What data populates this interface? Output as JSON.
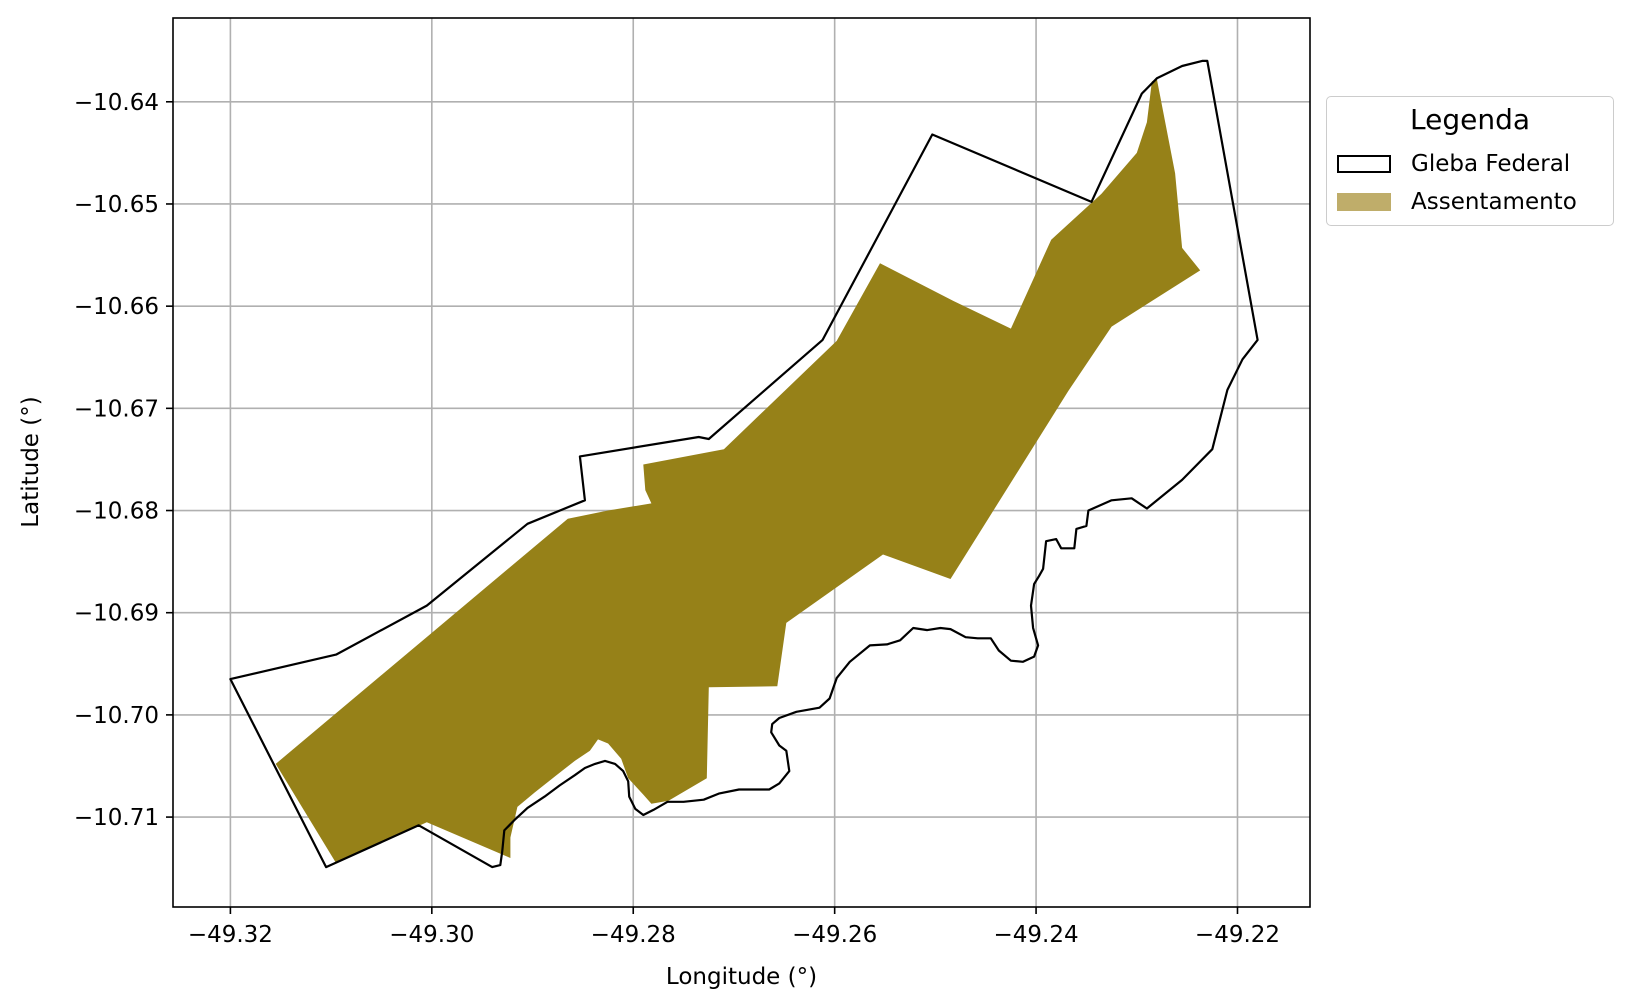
{
  "chart_data": {
    "type": "map",
    "xlabel": "Longitude (°)",
    "ylabel": "Latitude (°)",
    "xlim": [
      -49.3257,
      -49.2128
    ],
    "ylim": [
      -10.7188,
      -10.6318
    ],
    "x_ticks": [
      -49.32,
      -49.3,
      -49.28,
      -49.26,
      -49.24,
      -49.22
    ],
    "x_tick_labels": [
      "−49.32",
      "−49.30",
      "−49.28",
      "−49.26",
      "−49.24",
      "−49.22"
    ],
    "y_ticks": [
      -10.64,
      -10.65,
      -10.66,
      -10.67,
      -10.68,
      -10.69,
      -10.7,
      -10.71
    ],
    "y_tick_labels": [
      "−10.64",
      "−10.65",
      "−10.66",
      "−10.67",
      "−10.68",
      "−10.69",
      "−10.70",
      "−10.71"
    ],
    "grid": true,
    "legend": {
      "title": "Legenda",
      "placement": "outside-upper-right",
      "entries": [
        {
          "label": "Gleba Federal",
          "style": "outline",
          "edge_color": "#000000",
          "fill_color": "#ffffff"
        },
        {
          "label": "Assentamento",
          "style": "fill",
          "fill_color": "#bfad6a"
        }
      ]
    },
    "series": [
      {
        "name": "Gleba Federal",
        "style": "outline",
        "edge_color": "#000000",
        "coordinates": [
          [
            -49.32,
            -10.6965
          ],
          [
            -49.3095,
            -10.6941
          ],
          [
            -49.3005,
            -10.6893
          ],
          [
            -49.2905,
            -10.6813
          ],
          [
            -49.2848,
            -10.679
          ],
          [
            -49.2853,
            -10.6747
          ],
          [
            -49.2735,
            -10.6728
          ],
          [
            -49.2725,
            -10.673
          ],
          [
            -49.2612,
            -10.6633
          ],
          [
            -49.2503,
            -10.6432
          ],
          [
            -49.2345,
            -10.6498
          ],
          [
            -49.2295,
            -10.6392
          ],
          [
            -49.228,
            -10.6377
          ],
          [
            -49.2255,
            -10.6365
          ],
          [
            -49.2235,
            -10.636
          ],
          [
            -49.223,
            -10.636
          ],
          [
            -49.218,
            -10.6633
          ],
          [
            -49.2195,
            -10.6652
          ],
          [
            -49.221,
            -10.6682
          ],
          [
            -49.2225,
            -10.674
          ],
          [
            -49.2255,
            -10.677
          ],
          [
            -49.229,
            -10.6798
          ],
          [
            -49.2305,
            -10.6788
          ],
          [
            -49.2325,
            -10.679
          ],
          [
            -49.2348,
            -10.68
          ],
          [
            -49.235,
            -10.6815
          ],
          [
            -49.236,
            -10.6818
          ],
          [
            -49.2362,
            -10.6837
          ],
          [
            -49.2375,
            -10.6837
          ],
          [
            -49.238,
            -10.6828
          ],
          [
            -49.239,
            -10.683
          ],
          [
            -49.2393,
            -10.6857
          ],
          [
            -49.2397,
            -10.6864
          ],
          [
            -49.2402,
            -10.6872
          ],
          [
            -49.2405,
            -10.6893
          ],
          [
            -49.2403,
            -10.6915
          ],
          [
            -49.2398,
            -10.6932
          ],
          [
            -49.2402,
            -10.6943
          ],
          [
            -49.2413,
            -10.6948
          ],
          [
            -49.2425,
            -10.6947
          ],
          [
            -49.2437,
            -10.6937
          ],
          [
            -49.2445,
            -10.6925
          ],
          [
            -49.2458,
            -10.6925
          ],
          [
            -49.247,
            -10.6924
          ],
          [
            -49.2485,
            -10.6916
          ],
          [
            -49.2495,
            -10.6915
          ],
          [
            -49.2508,
            -10.6917
          ],
          [
            -49.2522,
            -10.6915
          ],
          [
            -49.2535,
            -10.6927
          ],
          [
            -49.2548,
            -10.6931
          ],
          [
            -49.2565,
            -10.6932
          ],
          [
            -49.2585,
            -10.6948
          ],
          [
            -49.2598,
            -10.6964
          ],
          [
            -49.2605,
            -10.6984
          ],
          [
            -49.2615,
            -10.6993
          ],
          [
            -49.2638,
            -10.6997
          ],
          [
            -49.2655,
            -10.7003
          ],
          [
            -49.2662,
            -10.7009
          ],
          [
            -49.2663,
            -10.7017
          ],
          [
            -49.2655,
            -10.703
          ],
          [
            -49.2648,
            -10.7035
          ],
          [
            -49.2645,
            -10.7055
          ],
          [
            -49.2655,
            -10.7067
          ],
          [
            -49.2665,
            -10.7073
          ],
          [
            -49.2695,
            -10.7073
          ],
          [
            -49.2715,
            -10.7077
          ],
          [
            -49.273,
            -10.7083
          ],
          [
            -49.275,
            -10.7085
          ],
          [
            -49.2766,
            -10.7085
          ],
          [
            -49.278,
            -10.7093
          ],
          [
            -49.279,
            -10.7098
          ],
          [
            -49.2798,
            -10.7092
          ],
          [
            -49.2804,
            -10.708
          ],
          [
            -49.2805,
            -10.7065
          ],
          [
            -49.281,
            -10.7055
          ],
          [
            -49.2818,
            -10.7048
          ],
          [
            -49.2828,
            -10.7045
          ],
          [
            -49.2838,
            -10.7048
          ],
          [
            -49.2848,
            -10.7052
          ],
          [
            -49.2858,
            -10.7059
          ],
          [
            -49.2873,
            -10.7069
          ],
          [
            -49.2888,
            -10.708
          ],
          [
            -49.2905,
            -10.7091
          ],
          [
            -49.2918,
            -10.7103
          ],
          [
            -49.2928,
            -10.7113
          ],
          [
            -49.293,
            -10.7133
          ],
          [
            -49.2932,
            -10.7147
          ],
          [
            -49.294,
            -10.7149
          ],
          [
            -49.3013,
            -10.7108
          ],
          [
            -49.3105,
            -10.7149
          ],
          [
            -49.32,
            -10.6965
          ]
        ]
      },
      {
        "name": "Assentamento",
        "style": "fill",
        "fill_color": "#968118",
        "coordinates": [
          [
            -49.3155,
            -10.7048
          ],
          [
            -49.2865,
            -10.6808
          ],
          [
            -49.2825,
            -10.68
          ],
          [
            -49.2782,
            -10.6793
          ],
          [
            -49.2788,
            -10.678
          ],
          [
            -49.279,
            -10.6755
          ],
          [
            -49.271,
            -10.674
          ],
          [
            -49.2598,
            -10.6634
          ],
          [
            -49.2555,
            -10.6558
          ],
          [
            -49.2482,
            -10.6595
          ],
          [
            -49.2425,
            -10.6622
          ],
          [
            -49.2385,
            -10.6535
          ],
          [
            -49.2335,
            -10.649
          ],
          [
            -49.23,
            -10.645
          ],
          [
            -49.229,
            -10.642
          ],
          [
            -49.2285,
            -10.638
          ],
          [
            -49.228,
            -10.6378
          ],
          [
            -49.2262,
            -10.647
          ],
          [
            -49.2255,
            -10.6543
          ],
          [
            -49.2237,
            -10.6565
          ],
          [
            -49.2325,
            -10.662
          ],
          [
            -49.2368,
            -10.6683
          ],
          [
            -49.2485,
            -10.6867
          ],
          [
            -49.2552,
            -10.6843
          ],
          [
            -49.2648,
            -10.691
          ],
          [
            -49.2657,
            -10.6972
          ],
          [
            -49.2725,
            -10.6973
          ],
          [
            -49.2727,
            -10.7062
          ],
          [
            -49.2765,
            -10.7084
          ],
          [
            -49.2782,
            -10.7087
          ],
          [
            -49.279,
            -10.7078
          ],
          [
            -49.2805,
            -10.7062
          ],
          [
            -49.2812,
            -10.7043
          ],
          [
            -49.2825,
            -10.7028
          ],
          [
            -49.2835,
            -10.7024
          ],
          [
            -49.2843,
            -10.7035
          ],
          [
            -49.2858,
            -10.7045
          ],
          [
            -49.2875,
            -10.7058
          ],
          [
            -49.2898,
            -10.7076
          ],
          [
            -49.2915,
            -10.709
          ],
          [
            -49.2922,
            -10.712
          ],
          [
            -49.2922,
            -10.714
          ],
          [
            -49.3005,
            -10.7105
          ],
          [
            -49.3095,
            -10.7145
          ],
          [
            -49.3155,
            -10.7048
          ]
        ]
      }
    ]
  }
}
